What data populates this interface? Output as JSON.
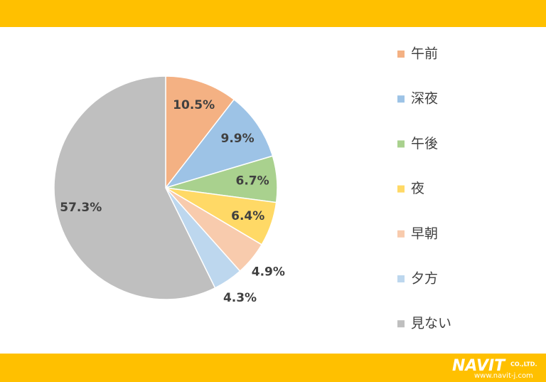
{
  "chart_data": {
    "type": "pie",
    "categories": [
      "午前",
      "深夜",
      "午後",
      "夜",
      "早朝",
      "夕方",
      "見ない"
    ],
    "values": [
      10.5,
      9.9,
      6.7,
      6.4,
      4.9,
      4.3,
      57.3
    ],
    "value_labels": [
      "10.5%",
      "9.9%",
      "6.7%",
      "6.4%",
      "4.9%",
      "4.3%",
      "57.3%"
    ],
    "colors": [
      "#f4b183",
      "#9dc3e6",
      "#a9d18e",
      "#ffd966",
      "#f8cbad",
      "#bdd7ee",
      "#bfbfbf"
    ],
    "legend": "right"
  },
  "logo": {
    "name": "NAVIT",
    "suffix": "CO.,LTD.",
    "url": "www.navit-j.com"
  }
}
